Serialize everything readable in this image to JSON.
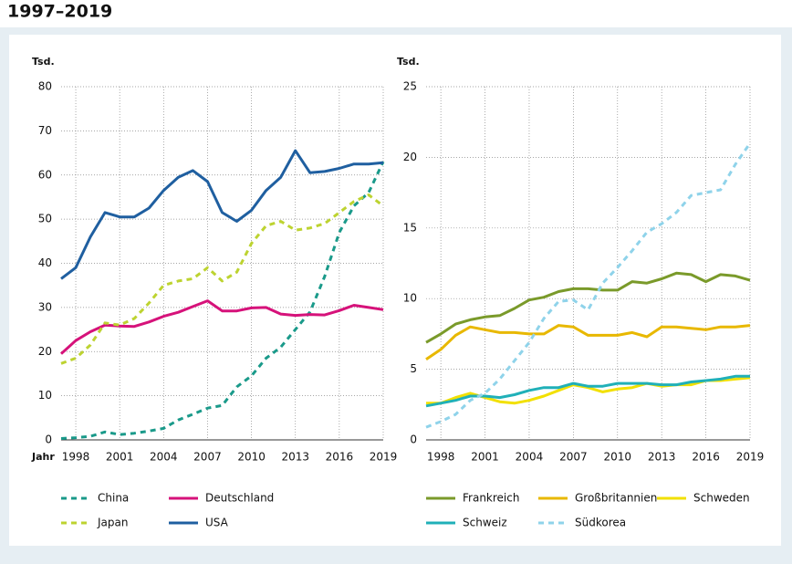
{
  "title": "1997–2019",
  "chart_data": [
    {
      "type": "line",
      "y_label": "Tsd.",
      "x_label": "Jahr",
      "grid": true,
      "x": [
        1997,
        1998,
        1999,
        2000,
        2001,
        2002,
        2003,
        2004,
        2005,
        2006,
        2007,
        2008,
        2009,
        2010,
        2011,
        2012,
        2013,
        2014,
        2015,
        2016,
        2017,
        2018,
        2019
      ],
      "xlim": [
        1997,
        2019
      ],
      "xticks": [
        1998,
        2001,
        2004,
        2007,
        2010,
        2013,
        2016,
        2019
      ],
      "ylim": [
        0,
        80
      ],
      "yticks": [
        0,
        10,
        20,
        30,
        40,
        50,
        60,
        70,
        80
      ],
      "series": [
        {
          "name": "China",
          "color": "#1a9a8a",
          "dashed": true,
          "values": [
            0.3,
            0.5,
            0.8,
            1.8,
            1.2,
            1.5,
            2,
            2.6,
            4.5,
            5.8,
            7.2,
            7.8,
            12,
            14.5,
            18.5,
            21,
            25,
            29,
            37,
            47,
            53,
            56,
            63
          ]
        },
        {
          "name": "Deutschland",
          "color": "#d6127a",
          "values": [
            19.5,
            22.5,
            24.5,
            26,
            25.8,
            25.7,
            26.7,
            28,
            28.9,
            30.2,
            31.5,
            29.2,
            29.2,
            29.9,
            30,
            28.5,
            28.2,
            28.4,
            28.3,
            29.3,
            30.5,
            30,
            29.5
          ]
        },
        {
          "name": "Japan",
          "color": "#bdd330",
          "dashed": true,
          "values": [
            17.3,
            18.5,
            21.5,
            26.5,
            26,
            27.5,
            31,
            35,
            36,
            36.5,
            39,
            36,
            38,
            44.5,
            48.5,
            49.5,
            47.5,
            48,
            49,
            51.5,
            54,
            55.5,
            53
          ]
        },
        {
          "name": "USA",
          "color": "#1f5fa0",
          "values": [
            36.5,
            39,
            46,
            51.5,
            50.5,
            50.5,
            52.5,
            56.5,
            59.5,
            61,
            58.5,
            51.5,
            49.5,
            52,
            56.5,
            59.5,
            65.5,
            60.5,
            60.8,
            61.5,
            62.5,
            62.5,
            62.8
          ]
        }
      ]
    },
    {
      "type": "line",
      "y_label": "Tsd.",
      "grid": true,
      "x": [
        1997,
        1998,
        1999,
        2000,
        2001,
        2002,
        2003,
        2004,
        2005,
        2006,
        2007,
        2008,
        2009,
        2010,
        2011,
        2012,
        2013,
        2014,
        2015,
        2016,
        2017,
        2018,
        2019
      ],
      "xlim": [
        1997,
        2019
      ],
      "xticks": [
        1998,
        2001,
        2004,
        2007,
        2010,
        2013,
        2016,
        2019
      ],
      "ylim": [
        0,
        25
      ],
      "yticks": [
        0,
        5,
        10,
        15,
        20,
        25
      ],
      "series": [
        {
          "name": "Frankreich",
          "color": "#7a9a2a",
          "values": [
            6.9,
            7.5,
            8.2,
            8.5,
            8.7,
            8.8,
            9.3,
            9.9,
            10.1,
            10.5,
            10.7,
            10.7,
            10.6,
            10.6,
            11.2,
            11.1,
            11.4,
            11.8,
            11.7,
            11.2,
            11.7,
            11.6,
            11.3
          ]
        },
        {
          "name": "Großbritannien",
          "color": "#e8b800",
          "values": [
            5.7,
            6.4,
            7.4,
            8.0,
            7.8,
            7.6,
            7.6,
            7.5,
            7.5,
            8.1,
            8.0,
            7.4,
            7.4,
            7.4,
            7.6,
            7.3,
            8.0,
            8.0,
            7.9,
            7.8,
            8.0,
            8.0,
            8.1
          ]
        },
        {
          "name": "Schweden",
          "color": "#f2e000",
          "values": [
            2.6,
            2.6,
            3.0,
            3.3,
            3.0,
            2.7,
            2.6,
            2.8,
            3.1,
            3.5,
            3.9,
            3.7,
            3.4,
            3.6,
            3.7,
            4.0,
            3.8,
            3.9,
            3.9,
            4.2,
            4.2,
            4.3,
            4.4
          ]
        },
        {
          "name": "Schweiz",
          "color": "#20b0b8",
          "values": [
            2.4,
            2.6,
            2.8,
            3.1,
            3.1,
            3.0,
            3.2,
            3.5,
            3.7,
            3.7,
            4.0,
            3.8,
            3.8,
            4.0,
            4.0,
            4.0,
            3.9,
            3.9,
            4.1,
            4.2,
            4.3,
            4.5,
            4.5
          ]
        },
        {
          "name": "Südkorea",
          "color": "#8fd3ea",
          "dashed": true,
          "values": [
            0.9,
            1.3,
            1.8,
            2.8,
            3.3,
            4.3,
            5.6,
            6.9,
            8.6,
            9.8,
            9.9,
            9.2,
            11.1,
            12.2,
            13.4,
            14.7,
            15.3,
            16.1,
            17.3,
            17.5,
            17.7,
            19.5,
            21
          ]
        }
      ]
    }
  ]
}
